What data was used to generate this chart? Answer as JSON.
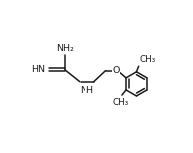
{
  "bg_color": "#ffffff",
  "line_color": "#1a1a1a",
  "text_color": "#1a1a1a",
  "line_width": 1.1,
  "font_size": 6.8,
  "fig_width": 1.93,
  "fig_height": 1.53,
  "dpi": 100,
  "xlim": [
    0,
    10
  ],
  "ylim": [
    0,
    8
  ]
}
